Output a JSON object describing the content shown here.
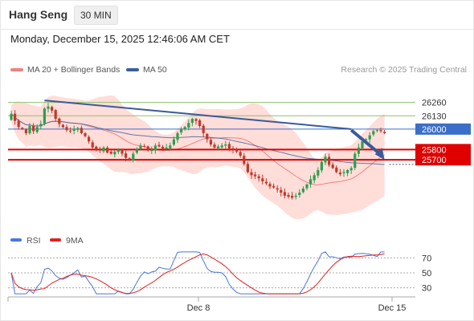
{
  "header": {
    "title": "Hang Seng",
    "timeframe": "30 MIN"
  },
  "datetime": "Monday, December 15, 2025 12:46:06 AM CET",
  "legend": {
    "ma20_label": "MA 20 + Bollinger Bands",
    "ma50_label": "MA 50",
    "ma20_color": "#f08080",
    "ma50_color": "#3a5f9f"
  },
  "credit": "Research © 2025 Trading Central",
  "colors": {
    "up": "#2e9e4f",
    "down": "#c0392b",
    "band": "#ffd5d0",
    "resistance": "#8dc26b",
    "pivot": "#3b6ec8",
    "support": "#e00000",
    "trendline": "#3a5a9a"
  },
  "chart_data": [
    {
      "type": "candlestick",
      "title": "",
      "x_ticks": [
        "Dec 8",
        "Dec 15"
      ],
      "y_range": [
        25020,
        26500
      ],
      "levels": [
        {
          "value": 26260,
          "label": "26260",
          "kind": "resistance"
        },
        {
          "value": 26130,
          "label": "26130",
          "kind": "resistance"
        },
        {
          "value": 26000,
          "label": "26000",
          "kind": "pivot"
        },
        {
          "value": 25800,
          "label": "25800",
          "kind": "support"
        },
        {
          "value": 25700,
          "label": "25700",
          "kind": "support"
        }
      ],
      "trendline": {
        "from_index": 9,
        "from_value": 26280,
        "to_index": 92,
        "to_value": 26000
      },
      "forecast": {
        "from_index": 92,
        "from_value": 25990,
        "to_index": 101,
        "to_value": 25700
      },
      "closes": [
        26150,
        26080,
        26020,
        26000,
        25960,
        26030,
        25980,
        26020,
        26050,
        26200,
        26220,
        26180,
        26100,
        26050,
        26020,
        25990,
        25980,
        26000,
        26010,
        25960,
        25930,
        25880,
        25820,
        25800,
        25790,
        25820,
        25770,
        25760,
        25780,
        25800,
        25760,
        25720,
        25700,
        25760,
        25810,
        25840,
        25830,
        25790,
        25800,
        25840,
        25830,
        25810,
        25820,
        25840,
        25900,
        25960,
        26000,
        26020,
        26060,
        26100,
        26080,
        26030,
        25960,
        25900,
        25850,
        25820,
        25830,
        25840,
        25850,
        25810,
        25800,
        25780,
        25740,
        25660,
        25580,
        25550,
        25540,
        25520,
        25490,
        25470,
        25440,
        25430,
        25410,
        25380,
        25350,
        25340,
        25330,
        25350,
        25380,
        25420,
        25460,
        25510,
        25550,
        25600,
        25680,
        25730,
        25650,
        25620,
        25580,
        25560,
        25580,
        25600,
        25620,
        25760,
        25820,
        25880,
        25900,
        25940,
        25980,
        25990,
        25980,
        25960
      ]
    },
    {
      "type": "line",
      "title": "",
      "series": [
        {
          "name": "RSI"
        },
        {
          "name": "9MA"
        }
      ],
      "y_ticks": [
        70,
        50,
        30
      ],
      "x_ticks": [
        "Dec 8",
        "Dec 15"
      ]
    }
  ],
  "rsi": {
    "label": "RSI",
    "ma_label": "9MA",
    "color": "#4a78d8",
    "ma_color": "#e02020"
  },
  "axis": {
    "y_labels": [
      "26260",
      "26130",
      "26000",
      "25800",
      "25700"
    ],
    "rsi_ticks": [
      "70",
      "50",
      "30"
    ],
    "x_labels": [
      "Dec 8",
      "Dec 15"
    ]
  }
}
